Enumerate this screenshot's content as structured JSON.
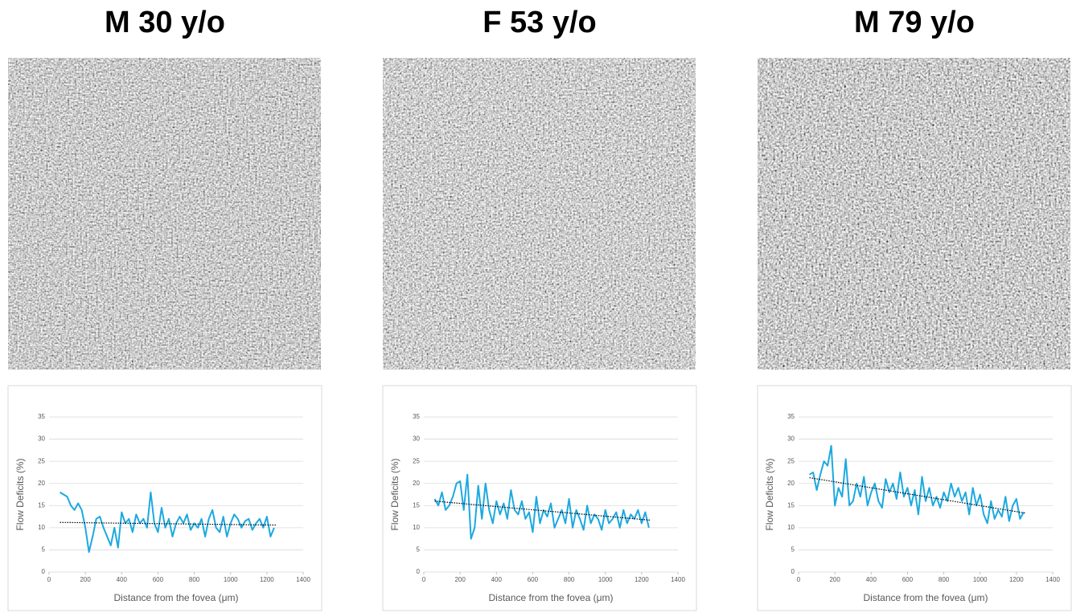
{
  "chart_data": [
    {
      "type": "line",
      "title": "M 30 y/o",
      "xlabel": "Distance from the fovea (μm)",
      "ylabel": "Flow Deficits (%)",
      "xlim": [
        0,
        1400
      ],
      "xticks": [
        0,
        200,
        400,
        600,
        800,
        1000,
        1200,
        1400
      ],
      "ylim": [
        0,
        35
      ],
      "yticks": [
        0,
        5,
        10,
        15,
        20,
        25,
        30,
        35
      ],
      "grid": true,
      "color": "#1ca9e0",
      "x": [
        60,
        80,
        100,
        120,
        140,
        160,
        180,
        200,
        220,
        240,
        260,
        280,
        300,
        320,
        340,
        360,
        380,
        400,
        420,
        440,
        460,
        480,
        500,
        520,
        540,
        560,
        580,
        600,
        620,
        640,
        660,
        680,
        700,
        720,
        740,
        760,
        780,
        800,
        820,
        840,
        860,
        880,
        900,
        920,
        940,
        960,
        980,
        1000,
        1020,
        1040,
        1060,
        1080,
        1100,
        1120,
        1140,
        1160,
        1180,
        1200,
        1220,
        1240
      ],
      "values": [
        18,
        17.5,
        17,
        15,
        14,
        15.5,
        14,
        10,
        4.5,
        8,
        12,
        12.5,
        10,
        8,
        6,
        10,
        5.5,
        13.5,
        11,
        12,
        9,
        13,
        11,
        12,
        10,
        18,
        11,
        9,
        14.5,
        10,
        12,
        8,
        11,
        12.5,
        11,
        13,
        9.5,
        11,
        10,
        12,
        8,
        12,
        14,
        10,
        9,
        12.5,
        8,
        11,
        13,
        12,
        10,
        11.5,
        12,
        9.5,
        11,
        12,
        10,
        12.5,
        8,
        10
      ],
      "trendline": {
        "x": [
          60,
          1250
        ],
        "values": [
          11.2,
          10.6
        ]
      }
    },
    {
      "type": "line",
      "title": "F 53 y/o",
      "xlabel": "Distance from the fovea (μm)",
      "ylabel": "Flow Deficits (%)",
      "xlim": [
        0,
        1400
      ],
      "xticks": [
        0,
        200,
        400,
        600,
        800,
        1000,
        1200,
        1400
      ],
      "ylim": [
        0,
        35
      ],
      "yticks": [
        0,
        5,
        10,
        15,
        20,
        25,
        30,
        35
      ],
      "grid": true,
      "color": "#1ca9e0",
      "x": [
        60,
        80,
        100,
        120,
        140,
        160,
        180,
        200,
        220,
        240,
        260,
        280,
        300,
        320,
        340,
        360,
        380,
        400,
        420,
        440,
        460,
        480,
        500,
        520,
        540,
        560,
        580,
        600,
        620,
        640,
        660,
        680,
        700,
        720,
        740,
        760,
        780,
        800,
        820,
        840,
        860,
        880,
        900,
        920,
        940,
        960,
        980,
        1000,
        1020,
        1040,
        1060,
        1080,
        1100,
        1120,
        1140,
        1160,
        1180,
        1200,
        1220,
        1240
      ],
      "values": [
        16.5,
        15,
        18,
        14,
        15,
        17,
        20,
        20.5,
        14,
        22,
        7.5,
        10,
        19.5,
        12,
        20,
        14,
        11,
        16,
        13,
        15.5,
        12,
        18.5,
        14,
        13,
        16,
        12,
        13.5,
        9,
        17,
        11,
        14,
        12.5,
        15.5,
        10,
        12,
        14,
        11,
        16.5,
        10,
        14,
        12,
        9.5,
        15,
        11,
        13,
        12,
        9.5,
        14,
        11,
        12,
        13.5,
        10,
        14,
        11,
        13,
        12,
        14,
        11,
        13.5,
        10
      ],
      "trendline": {
        "x": [
          60,
          1250
        ],
        "values": [
          16,
          11.7
        ]
      }
    },
    {
      "type": "line",
      "title": "M 79 y/o",
      "xlabel": "Distance from the fovea (μm)",
      "ylabel": "Flow Deficits (%)",
      "xlim": [
        0,
        1400
      ],
      "xticks": [
        0,
        200,
        400,
        600,
        800,
        1000,
        1200,
        1400
      ],
      "ylim": [
        0,
        35
      ],
      "yticks": [
        0,
        5,
        10,
        15,
        20,
        25,
        30,
        35
      ],
      "grid": true,
      "color": "#1ca9e0",
      "x": [
        60,
        80,
        100,
        120,
        140,
        160,
        180,
        200,
        220,
        240,
        260,
        280,
        300,
        320,
        340,
        360,
        380,
        400,
        420,
        440,
        460,
        480,
        500,
        520,
        540,
        560,
        580,
        600,
        620,
        640,
        660,
        680,
        700,
        720,
        740,
        760,
        780,
        800,
        820,
        840,
        860,
        880,
        900,
        920,
        940,
        960,
        980,
        1000,
        1020,
        1040,
        1060,
        1080,
        1100,
        1120,
        1140,
        1160,
        1180,
        1200,
        1220,
        1240
      ],
      "values": [
        22,
        22.5,
        18.5,
        22,
        25,
        24,
        28.5,
        15,
        19,
        17,
        25.5,
        15,
        16,
        20,
        17,
        21.5,
        15,
        18,
        20,
        16,
        14.5,
        21,
        18,
        20,
        16.5,
        22.5,
        17,
        19,
        15,
        18.5,
        13,
        21.5,
        16,
        19,
        15,
        17,
        14.5,
        18,
        16,
        20,
        17,
        19,
        16,
        18,
        13,
        19,
        15,
        17.5,
        13,
        11,
        16,
        12,
        14,
        12.5,
        17,
        11.5,
        15,
        16.5,
        12,
        13.5
      ],
      "trendline": {
        "x": [
          60,
          1250
        ],
        "values": [
          21.3,
          13.3
        ]
      }
    }
  ]
}
